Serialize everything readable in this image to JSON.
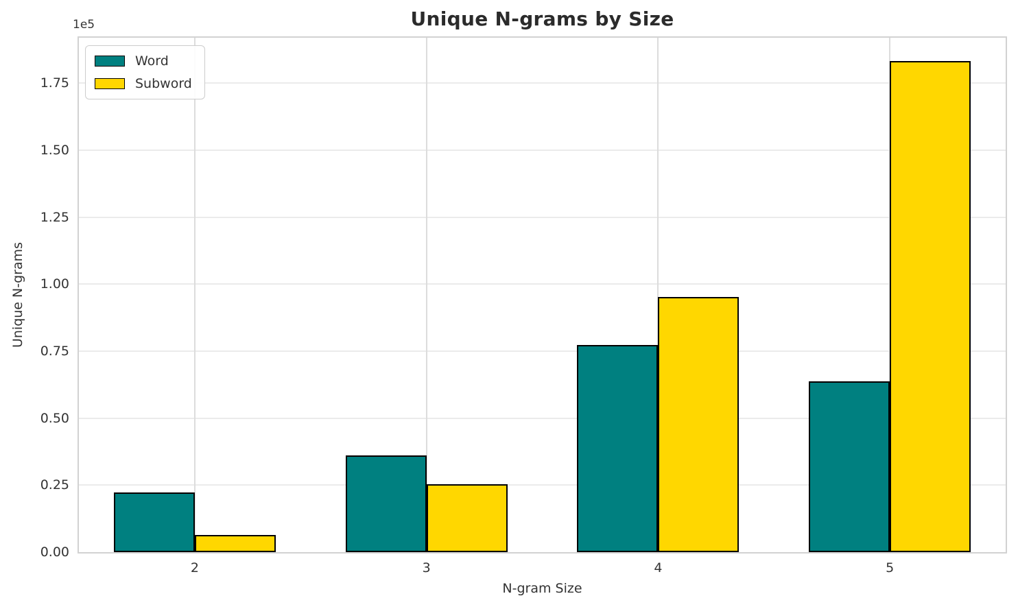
{
  "chart_data": {
    "type": "bar",
    "title": "Unique N-grams by Size",
    "xlabel": "N-gram Size",
    "ylabel": "Unique N-grams",
    "y_offset_label": "1e5",
    "categories": [
      "2",
      "3",
      "4",
      "5"
    ],
    "series": [
      {
        "name": "Word",
        "color": "#008080",
        "values": [
          22200,
          36000,
          77300,
          63800
        ]
      },
      {
        "name": "Subword",
        "color": "#FFD700",
        "values": [
          6400,
          25300,
          95200,
          183200
        ]
      }
    ],
    "bar_edge_color": "#000000",
    "ylim": [
      0,
      192000
    ],
    "yticks": {
      "values": [
        0,
        25000,
        50000,
        75000,
        100000,
        125000,
        150000,
        175000
      ],
      "labels": [
        "0.00",
        "0.25",
        "0.50",
        "0.75",
        "1.00",
        "1.25",
        "1.50",
        "1.75"
      ]
    },
    "grid": true,
    "legend_position": "upper left"
  }
}
